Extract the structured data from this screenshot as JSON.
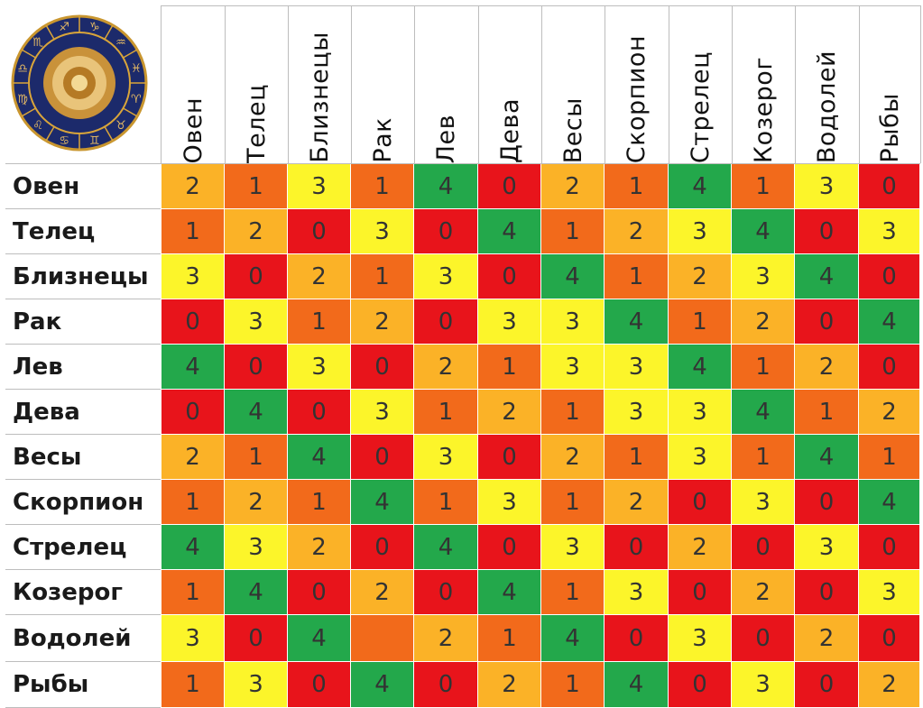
{
  "chart_data": {
    "type": "heatmap",
    "columns": [
      "Овен",
      "Телец",
      "Близнецы",
      "Рак",
      "Лев",
      "Дева",
      "Весы",
      "Скорпион",
      "Стрелец",
      "Козерог",
      "Водолей",
      "Рыбы"
    ],
    "rows": [
      "Овен",
      "Телец",
      "Близнецы",
      "Рак",
      "Лев",
      "Дева",
      "Весы",
      "Скорпион",
      "Стрелец",
      "Козерог",
      "Водолей",
      "Рыбы"
    ],
    "values": [
      [
        2,
        1,
        3,
        1,
        4,
        0,
        2,
        1,
        4,
        1,
        3,
        0
      ],
      [
        1,
        2,
        0,
        3,
        0,
        4,
        1,
        2,
        3,
        4,
        0,
        3
      ],
      [
        3,
        0,
        2,
        1,
        3,
        0,
        4,
        1,
        2,
        3,
        4,
        0
      ],
      [
        0,
        3,
        1,
        2,
        0,
        3,
        3,
        4,
        1,
        2,
        0,
        4
      ],
      [
        4,
        0,
        3,
        0,
        2,
        1,
        3,
        3,
        4,
        1,
        2,
        0
      ],
      [
        0,
        4,
        0,
        3,
        1,
        2,
        1,
        3,
        3,
        4,
        1,
        2
      ],
      [
        2,
        1,
        4,
        0,
        3,
        0,
        2,
        1,
        3,
        1,
        4,
        1
      ],
      [
        1,
        2,
        1,
        4,
        1,
        3,
        1,
        2,
        0,
        3,
        0,
        4
      ],
      [
        4,
        3,
        2,
        0,
        4,
        0,
        3,
        0,
        2,
        0,
        3,
        0
      ],
      [
        1,
        4,
        0,
        2,
        0,
        4,
        1,
        3,
        0,
        2,
        0,
        3
      ],
      [
        3,
        0,
        4,
        null,
        2,
        1,
        4,
        0,
        3,
        0,
        2,
        0
      ],
      [
        1,
        3,
        0,
        4,
        0,
        2,
        1,
        4,
        0,
        3,
        0,
        2
      ]
    ],
    "value_colors": {
      "0": "#e8141b",
      "1": "#f26a1b",
      "2": "#fbb227",
      "3": "#fcf52a",
      "4": "#23a84b",
      "empty": "#f26a1b"
    }
  },
  "logo": {
    "icon": "zodiac-wheel-icon",
    "outer_color": "#1c2a6b",
    "ring_color": "#d9a53a"
  }
}
